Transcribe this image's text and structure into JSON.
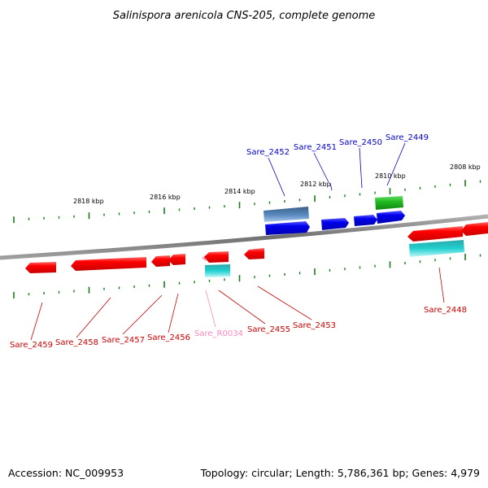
{
  "title": "Salinispora arenicola CNS-205, complete genome",
  "footer": {
    "accession": "Accession: NC_009953",
    "summary": "Topology: circular; Length: 5,786,361 bp; Genes: 4,979"
  },
  "scale_labels": [
    "2818 kbp",
    "2816 kbp",
    "2814 kbp",
    "2812 kbp",
    "2810 kbp",
    "2808 kbp"
  ],
  "colors": {
    "backbone": "#808080",
    "tick": "#1a7a1a",
    "reverse_gene": "#ff0000",
    "forward_gene": "#0000ee",
    "forward_label": "#0000cc",
    "reverse_label": "#cc0000",
    "rna_label": "#ff88bb",
    "steelblue_feature": "#4a7ab0",
    "green_feature": "#22bb22",
    "cyan_feature": "#22cccc",
    "pink_feature": "#ff99cc"
  },
  "genes": {
    "forward": [
      "Sare_2452",
      "Sare_2451",
      "Sare_2450",
      "Sare_2449"
    ],
    "reverse": [
      "Sare_2459",
      "Sare_2458",
      "Sare_2457",
      "Sare_2456",
      "Sare_R0034",
      "Sare_2455",
      "Sare_2453",
      "Sare_2448"
    ]
  }
}
